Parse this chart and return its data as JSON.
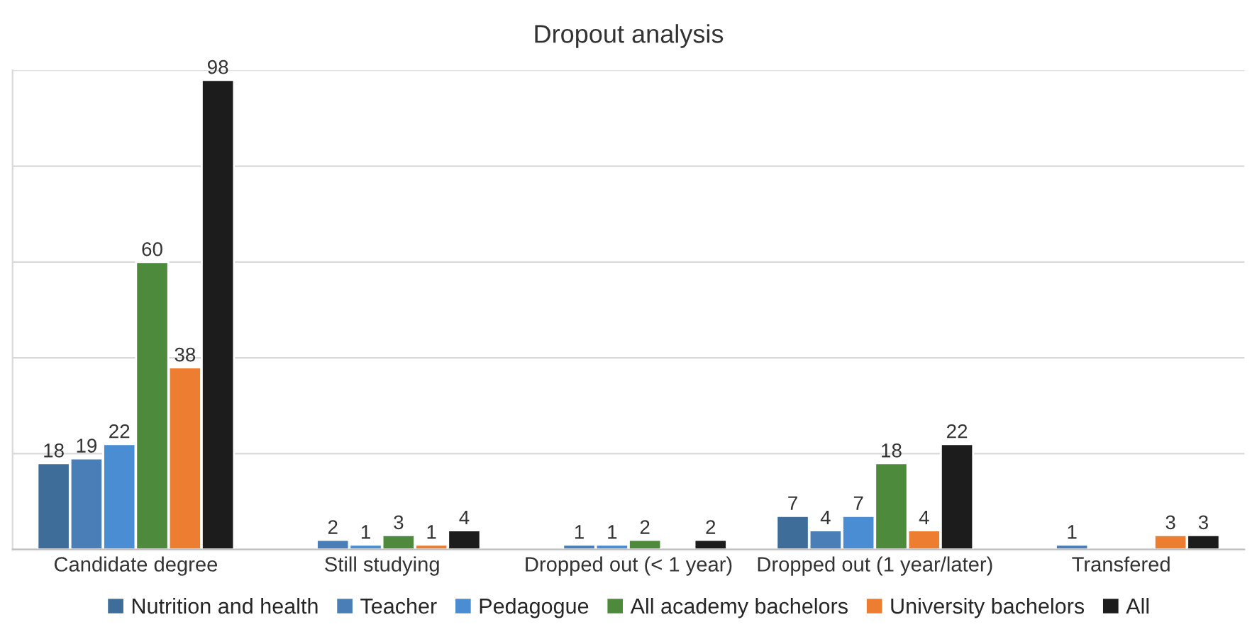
{
  "chart_data": {
    "type": "bar",
    "title": "Dropout analysis",
    "categories": [
      "Candidate degree",
      "Still studying",
      "Dropped out (< 1 year)",
      "Dropped out (1 year/later)",
      "Transfered"
    ],
    "series": [
      {
        "name": "Nutrition and health",
        "color": "#3f6d99",
        "values": [
          18,
          null,
          null,
          7,
          null
        ]
      },
      {
        "name": "Teacher",
        "color": "#4a7eb6",
        "values": [
          19,
          2,
          1,
          4,
          1
        ]
      },
      {
        "name": "Pedagogue",
        "color": "#4a8dd3",
        "values": [
          22,
          1,
          1,
          7,
          null
        ]
      },
      {
        "name": "All academy bachelors",
        "color": "#4e8a3b",
        "values": [
          60,
          3,
          2,
          18,
          null
        ]
      },
      {
        "name": "University bachelors",
        "color": "#ed7d31",
        "values": [
          38,
          1,
          null,
          4,
          3
        ]
      },
      {
        "name": "All",
        "color": "#1c1c1c",
        "values": [
          98,
          4,
          2,
          22,
          3
        ]
      }
    ],
    "ylim": [
      0,
      100
    ],
    "yticks": [
      {
        "value": 0,
        "label": null
      },
      {
        "value": 20,
        "label": null
      },
      {
        "value": 40,
        "label": null
      },
      {
        "value": 60,
        "label": null
      },
      {
        "value": 80,
        "label": null
      },
      {
        "value": 100,
        "label": null
      }
    ],
    "tick_labels": "x",
    "grid": "y",
    "legend": "bottom",
    "data_labels": true
  }
}
